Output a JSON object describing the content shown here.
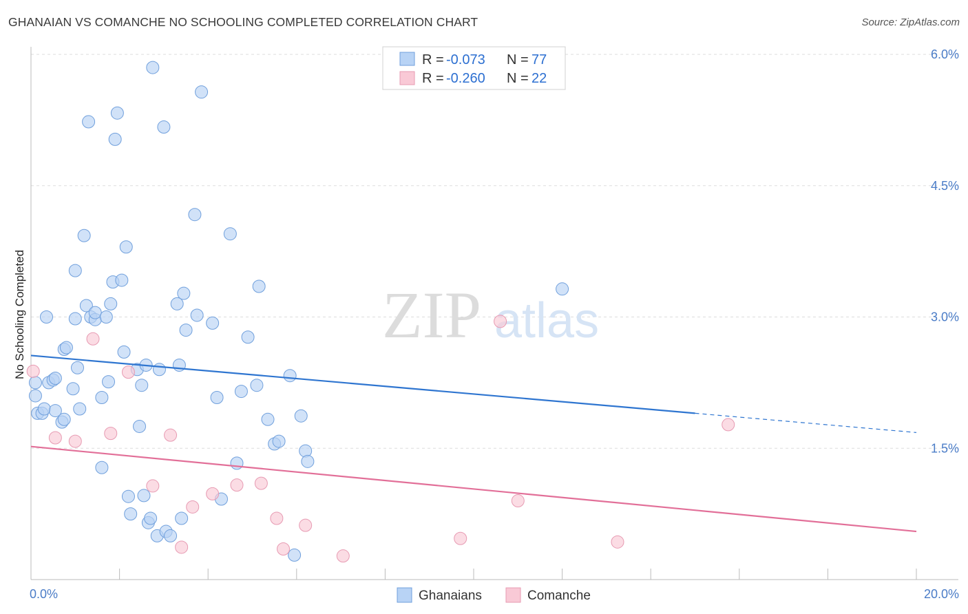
{
  "title": "GHANAIAN VS COMANCHE NO SCHOOLING COMPLETED CORRELATION CHART",
  "source": "Source: ZipAtlas.com",
  "watermark": {
    "zip": "ZIP",
    "atlas": "atlas"
  },
  "colors": {
    "blue_fill": "#b8d3f5",
    "blue_stroke": "#6f9fdc",
    "blue_line": "#2e75d0",
    "pink_fill": "#f9c9d6",
    "pink_stroke": "#e79ab2",
    "pink_line": "#e26f98",
    "grid": "#dddddd",
    "tick_text": "#4a7cc7"
  },
  "legend": {
    "r_label": "R =",
    "n_label": "N =",
    "series": [
      {
        "r": "-0.073",
        "n": "77"
      },
      {
        "r": "-0.260",
        "n": "22"
      }
    ]
  },
  "chart_data": {
    "type": "scatter",
    "xlabel": "",
    "ylabel": "No Schooling Completed",
    "xlim": [
      0,
      20
    ],
    "ylim": [
      0,
      6.2
    ],
    "x_tick_labels": [
      "0.0%",
      "20.0%"
    ],
    "y_ticks": [
      1.5,
      3.0,
      4.5,
      6.0
    ],
    "y_tick_labels": [
      "1.5%",
      "3.0%",
      "4.5%",
      "6.0%"
    ],
    "grid": true,
    "legend_position": "top-center",
    "series": [
      {
        "name": "Ghanaians",
        "color": "#b8d3f5",
        "trend": {
          "x": [
            0,
            15
          ],
          "y": [
            2.56,
            1.9
          ],
          "dashed_extension_to": [
            20,
            1.68
          ]
        },
        "points": [
          [
            0.1,
            2.25
          ],
          [
            0.1,
            2.1
          ],
          [
            0.15,
            1.9
          ],
          [
            0.25,
            1.9
          ],
          [
            0.3,
            1.95
          ],
          [
            0.35,
            3.0
          ],
          [
            0.4,
            2.25
          ],
          [
            0.5,
            2.28
          ],
          [
            0.55,
            2.3
          ],
          [
            0.55,
            1.93
          ],
          [
            0.7,
            1.8
          ],
          [
            0.75,
            1.83
          ],
          [
            0.75,
            2.63
          ],
          [
            0.8,
            2.65
          ],
          [
            0.95,
            2.18
          ],
          [
            1.0,
            2.98
          ],
          [
            1.0,
            3.53
          ],
          [
            1.05,
            2.42
          ],
          [
            1.1,
            1.95
          ],
          [
            1.2,
            3.93
          ],
          [
            1.25,
            3.13
          ],
          [
            1.3,
            5.23
          ],
          [
            1.35,
            3.0
          ],
          [
            1.45,
            2.97
          ],
          [
            1.45,
            3.05
          ],
          [
            1.6,
            1.28
          ],
          [
            1.6,
            2.08
          ],
          [
            1.7,
            3.0
          ],
          [
            1.75,
            2.26
          ],
          [
            1.8,
            3.15
          ],
          [
            1.85,
            3.4
          ],
          [
            1.9,
            5.03
          ],
          [
            1.95,
            5.33
          ],
          [
            2.05,
            3.42
          ],
          [
            2.1,
            2.6
          ],
          [
            2.15,
            3.8
          ],
          [
            2.2,
            0.95
          ],
          [
            2.25,
            0.75
          ],
          [
            2.4,
            2.4
          ],
          [
            2.45,
            1.75
          ],
          [
            2.5,
            2.22
          ],
          [
            2.55,
            0.96
          ],
          [
            2.6,
            2.45
          ],
          [
            2.65,
            0.65
          ],
          [
            2.7,
            0.7
          ],
          [
            2.75,
            5.85
          ],
          [
            2.85,
            0.5
          ],
          [
            2.9,
            2.4
          ],
          [
            3.0,
            5.17
          ],
          [
            3.05,
            0.55
          ],
          [
            3.15,
            0.5
          ],
          [
            3.3,
            3.15
          ],
          [
            3.35,
            2.45
          ],
          [
            3.4,
            0.7
          ],
          [
            3.45,
            3.27
          ],
          [
            3.5,
            2.85
          ],
          [
            3.7,
            4.17
          ],
          [
            3.75,
            3.02
          ],
          [
            3.85,
            5.57
          ],
          [
            4.1,
            2.93
          ],
          [
            4.2,
            2.08
          ],
          [
            4.3,
            0.92
          ],
          [
            4.5,
            3.95
          ],
          [
            4.65,
            1.33
          ],
          [
            4.75,
            2.15
          ],
          [
            4.9,
            2.77
          ],
          [
            5.1,
            2.22
          ],
          [
            5.15,
            3.35
          ],
          [
            5.35,
            1.83
          ],
          [
            5.5,
            1.55
          ],
          [
            5.6,
            1.58
          ],
          [
            5.85,
            2.33
          ],
          [
            5.95,
            0.28
          ],
          [
            6.1,
            1.87
          ],
          [
            6.2,
            1.47
          ],
          [
            6.25,
            1.35
          ],
          [
            12.0,
            3.32
          ]
        ]
      },
      {
        "name": "Comanche",
        "color": "#f9c9d6",
        "trend": {
          "x": [
            0,
            20
          ],
          "y": [
            1.52,
            0.55
          ]
        },
        "points": [
          [
            0.05,
            2.38
          ],
          [
            0.55,
            1.62
          ],
          [
            1.0,
            1.58
          ],
          [
            1.4,
            2.75
          ],
          [
            1.8,
            1.67
          ],
          [
            2.2,
            2.37
          ],
          [
            2.75,
            1.07
          ],
          [
            3.15,
            1.65
          ],
          [
            3.4,
            0.37
          ],
          [
            3.65,
            0.83
          ],
          [
            4.1,
            0.98
          ],
          [
            4.65,
            1.08
          ],
          [
            5.2,
            1.1
          ],
          [
            5.55,
            0.7
          ],
          [
            5.7,
            0.35
          ],
          [
            6.2,
            0.62
          ],
          [
            7.05,
            0.27
          ],
          [
            9.7,
            0.47
          ],
          [
            10.6,
            2.95
          ],
          [
            11.0,
            0.9
          ],
          [
            13.25,
            0.43
          ],
          [
            15.75,
            1.77
          ]
        ]
      }
    ]
  },
  "bottom_legend": {
    "items": [
      "Ghanaians",
      "Comanche"
    ]
  }
}
